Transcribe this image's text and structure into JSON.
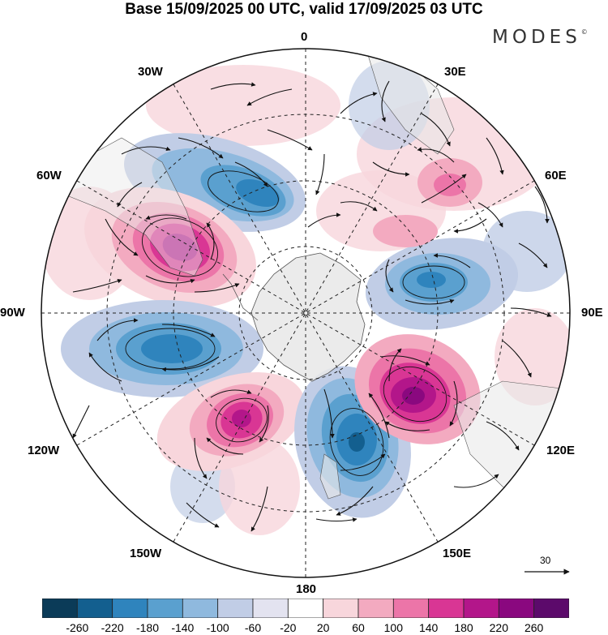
{
  "title": "Base 15/09/2025 00 UTC, valid 17/09/2025 03 UTC",
  "brand": "MODES",
  "brand_mark": "©",
  "lon_labels": {
    "deg0": "0",
    "e30": "30E",
    "e60": "60E",
    "e90": "90E",
    "e120": "120E",
    "e150": "150E",
    "deg180": "180",
    "w150": "150W",
    "w120": "120W",
    "w90": "90W",
    "w60": "60W",
    "w30": "30W"
  },
  "vector_reference": "30",
  "colorbar": {
    "ticks": [
      "-260",
      "-220",
      "-180",
      "-140",
      "-100",
      "-60",
      "-20",
      "20",
      "60",
      "100",
      "140",
      "180",
      "220",
      "260"
    ],
    "colors": [
      "#0b3b58",
      "#135f8f",
      "#2f84bd",
      "#5aa0cf",
      "#8fb9de",
      "#c1cde6",
      "#e3e3f0",
      "#ffffff",
      "#f8d6dc",
      "#f3aac0",
      "#ec75a8",
      "#d93694",
      "#b3168a",
      "#8a087f",
      "#5c0a6b"
    ]
  },
  "fields": {
    "negative": "#2f84bd",
    "positive": "#d93694",
    "land": "#e8e8e8"
  }
}
